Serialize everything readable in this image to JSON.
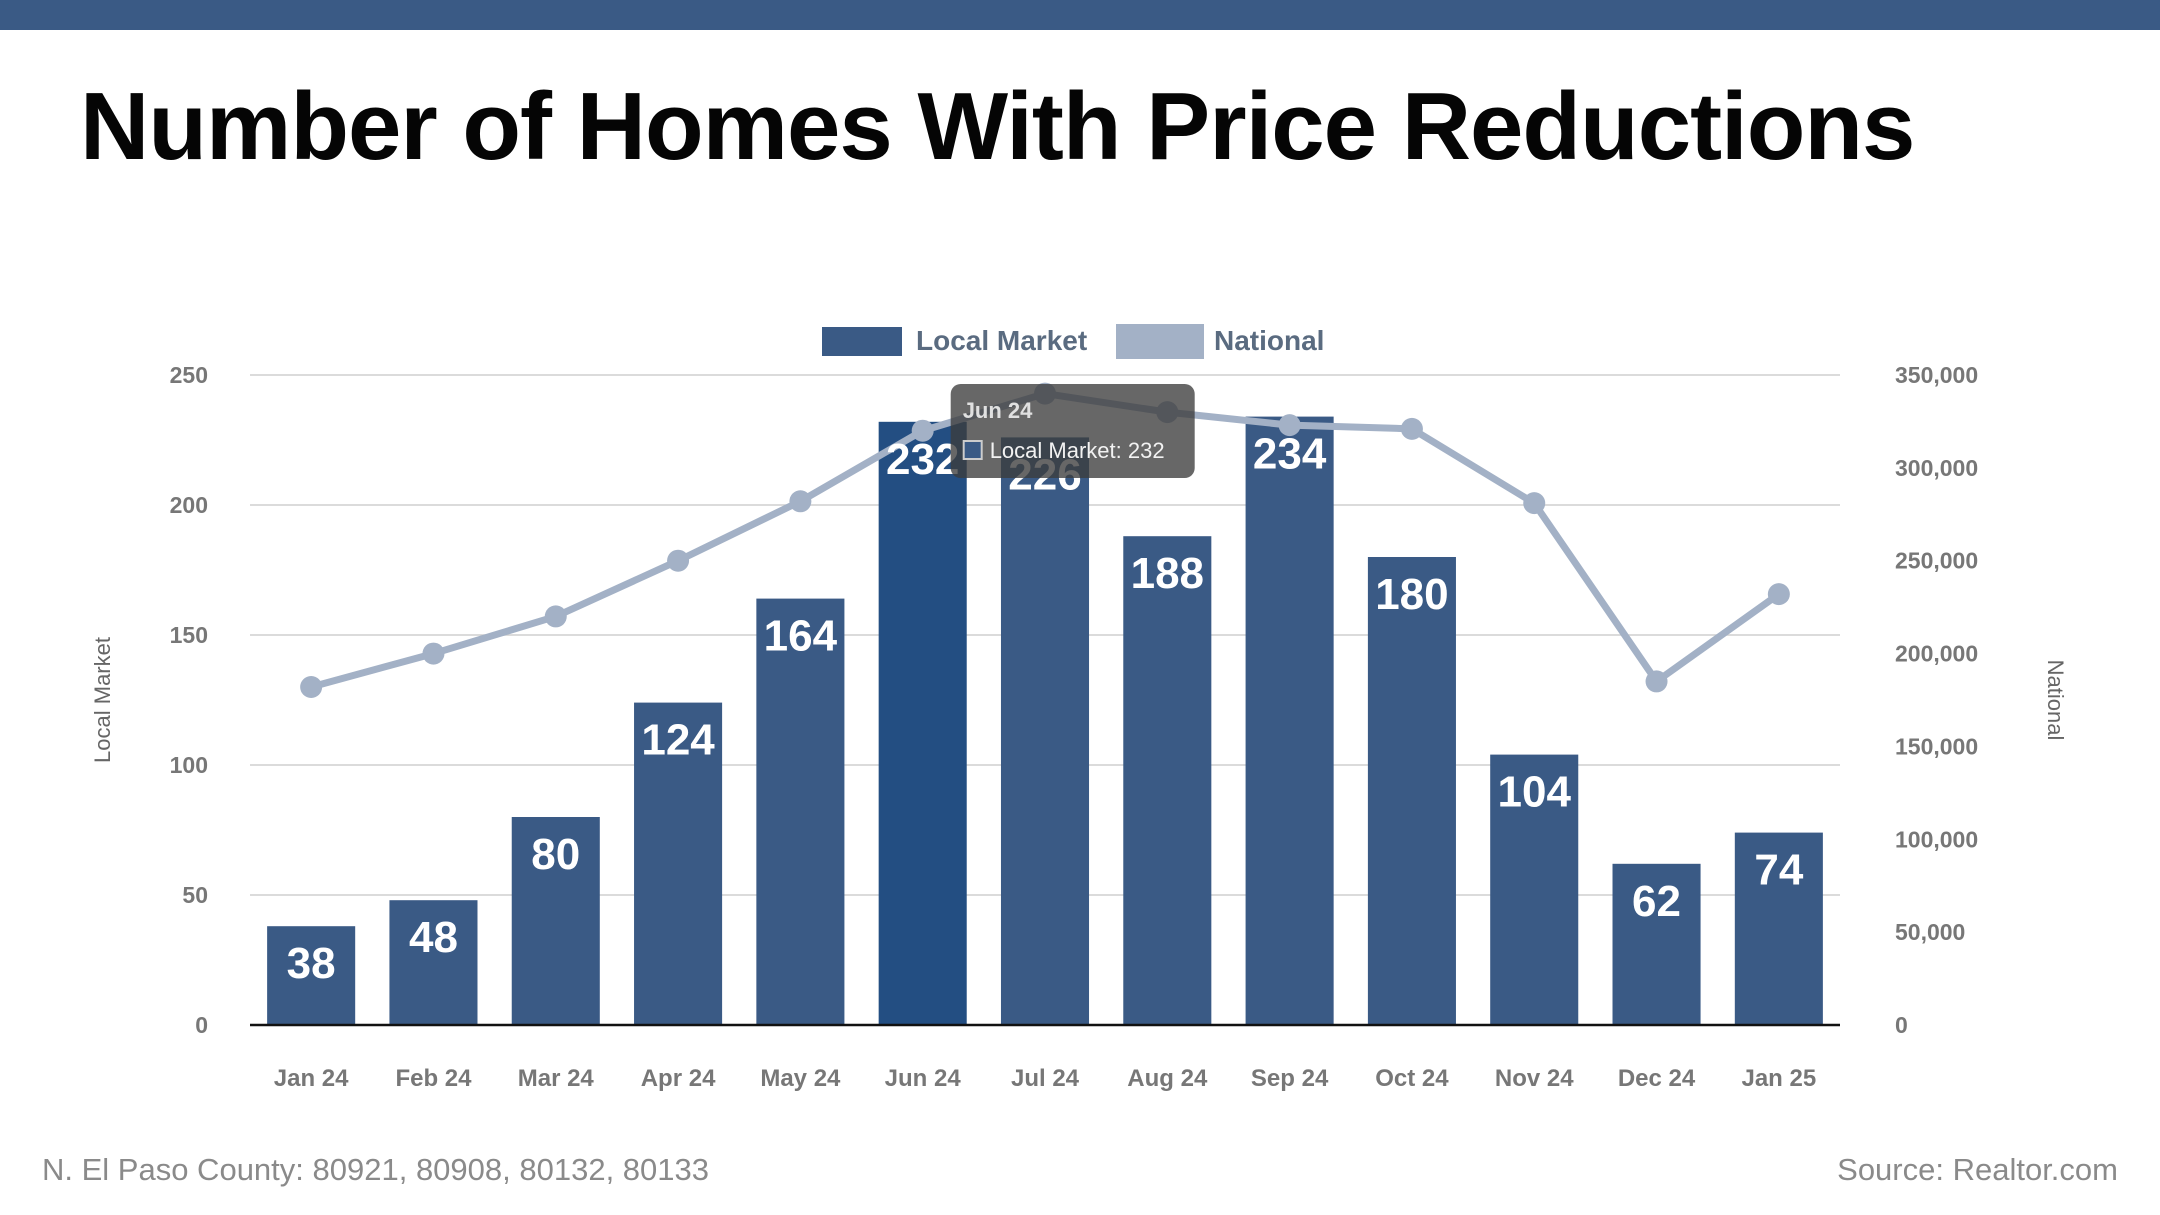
{
  "page": {
    "title": "Number of Homes With Price Reductions",
    "footer_left": "N. El Paso County: 80921, 80908, 80132, 80133",
    "footer_right": "Source: Realtor.com",
    "band_color": "#3a5a85"
  },
  "chart_data": {
    "type": "bar",
    "title": "Number of Homes With Price Reductions",
    "categories": [
      "Jan 24",
      "Feb 24",
      "Mar 24",
      "Apr 24",
      "May 24",
      "Jun 24",
      "Jul 24",
      "Aug 24",
      "Sep 24",
      "Oct 24",
      "Nov 24",
      "Dec 24",
      "Jan 25"
    ],
    "series": [
      {
        "name": "Local Market",
        "type": "bar",
        "axis": "left",
        "color": "#3a5a85",
        "highlight_color": "#234e82",
        "values": [
          38,
          48,
          80,
          124,
          164,
          232,
          226,
          188,
          234,
          180,
          104,
          62,
          74
        ]
      },
      {
        "name": "National",
        "type": "line",
        "axis": "right",
        "color": "#a3b1c6",
        "values": [
          182000,
          200000,
          220000,
          250000,
          282000,
          320000,
          340000,
          330000,
          323000,
          321000,
          281000,
          185000,
          232000
        ]
      }
    ],
    "y_left": {
      "label": "Local Market",
      "range": [
        0,
        250
      ],
      "ticks": [
        0,
        50,
        100,
        150,
        200,
        250
      ],
      "tick_labels": [
        "0",
        "50",
        "100",
        "150",
        "200",
        "250"
      ]
    },
    "y_right": {
      "label": "National",
      "range": [
        0,
        350000
      ],
      "ticks": [
        0,
        50000,
        100000,
        150000,
        200000,
        250000,
        300000,
        350000
      ],
      "tick_labels": [
        "0",
        "50,000",
        "100,000",
        "150,000",
        "200,000",
        "250,000",
        "300,000",
        "350,000"
      ]
    },
    "grid": true,
    "legend": {
      "position": "top-center",
      "entries": [
        "Local Market",
        "National"
      ]
    },
    "tooltip": {
      "category": "Jun 24",
      "title": "Jun 24",
      "text": "Local Market: 232"
    }
  }
}
